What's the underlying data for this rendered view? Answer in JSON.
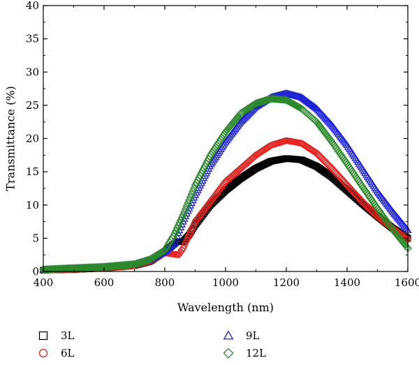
{
  "chart_data": {
    "type": "scatter",
    "xlabel": "Wavelength (nm)",
    "ylabel": "Transmittance (%)",
    "xlim": [
      400,
      1600
    ],
    "ylim": [
      0,
      40
    ],
    "xticks": [
      400,
      600,
      800,
      1000,
      1200,
      1400,
      1600
    ],
    "yticks": [
      0,
      5,
      10,
      15,
      20,
      25,
      30,
      35,
      40
    ],
    "grid": false,
    "legend_position": "bottom",
    "series": [
      {
        "name": "3L",
        "marker": "square",
        "color": "#000000",
        "x": [
          400,
          500,
          600,
          700,
          750,
          800,
          840,
          860,
          880,
          900,
          950,
          1000,
          1050,
          1100,
          1150,
          1200,
          1250,
          1300,
          1350,
          1400,
          1450,
          1500,
          1550,
          1600
        ],
        "y": [
          0.2,
          0.3,
          0.5,
          0.9,
          1.5,
          3.0,
          4.5,
          4.5,
          5.5,
          7.0,
          10.0,
          12.2,
          14.0,
          15.5,
          16.6,
          17.0,
          16.8,
          15.8,
          14.2,
          12.2,
          10.2,
          8.3,
          6.5,
          5.0
        ]
      },
      {
        "name": "6L",
        "marker": "circle",
        "color": "#e8201c",
        "x": [
          400,
          500,
          600,
          700,
          750,
          800,
          845,
          860,
          880,
          900,
          950,
          1000,
          1050,
          1100,
          1150,
          1200,
          1250,
          1300,
          1350,
          1400,
          1450,
          1500,
          1550,
          1600
        ],
        "y": [
          0.2,
          0.3,
          0.5,
          0.9,
          1.5,
          2.8,
          2.5,
          3.5,
          5.5,
          7.5,
          10.5,
          13.5,
          15.5,
          17.5,
          19.0,
          19.7,
          19.3,
          17.8,
          15.5,
          13.0,
          10.5,
          8.3,
          6.5,
          4.8
        ]
      },
      {
        "name": "9L",
        "marker": "triangle",
        "color": "#1d22d8",
        "x": [
          400,
          500,
          600,
          700,
          750,
          800,
          830,
          860,
          900,
          950,
          1000,
          1050,
          1100,
          1150,
          1200,
          1250,
          1300,
          1350,
          1400,
          1450,
          1500,
          1550,
          1600
        ],
        "y": [
          0.3,
          0.5,
          0.7,
          1.1,
          1.8,
          3.0,
          4.2,
          7.5,
          11.5,
          16.0,
          19.5,
          22.5,
          24.8,
          26.2,
          26.8,
          26.2,
          24.5,
          22.0,
          19.0,
          15.5,
          12.0,
          9.0,
          6.2
        ]
      },
      {
        "name": "12L",
        "marker": "diamond",
        "color": "#2a8a2a",
        "x": [
          400,
          500,
          600,
          700,
          750,
          800,
          830,
          860,
          900,
          950,
          1000,
          1050,
          1100,
          1150,
          1200,
          1250,
          1300,
          1350,
          1400,
          1450,
          1500,
          1550,
          1600
        ],
        "y": [
          0.3,
          0.5,
          0.7,
          1.1,
          1.8,
          3.2,
          5.5,
          8.5,
          13.0,
          17.5,
          21.0,
          23.8,
          25.3,
          26.0,
          25.8,
          24.5,
          22.5,
          19.5,
          16.2,
          12.8,
          9.5,
          6.3,
          3.5
        ]
      }
    ]
  }
}
